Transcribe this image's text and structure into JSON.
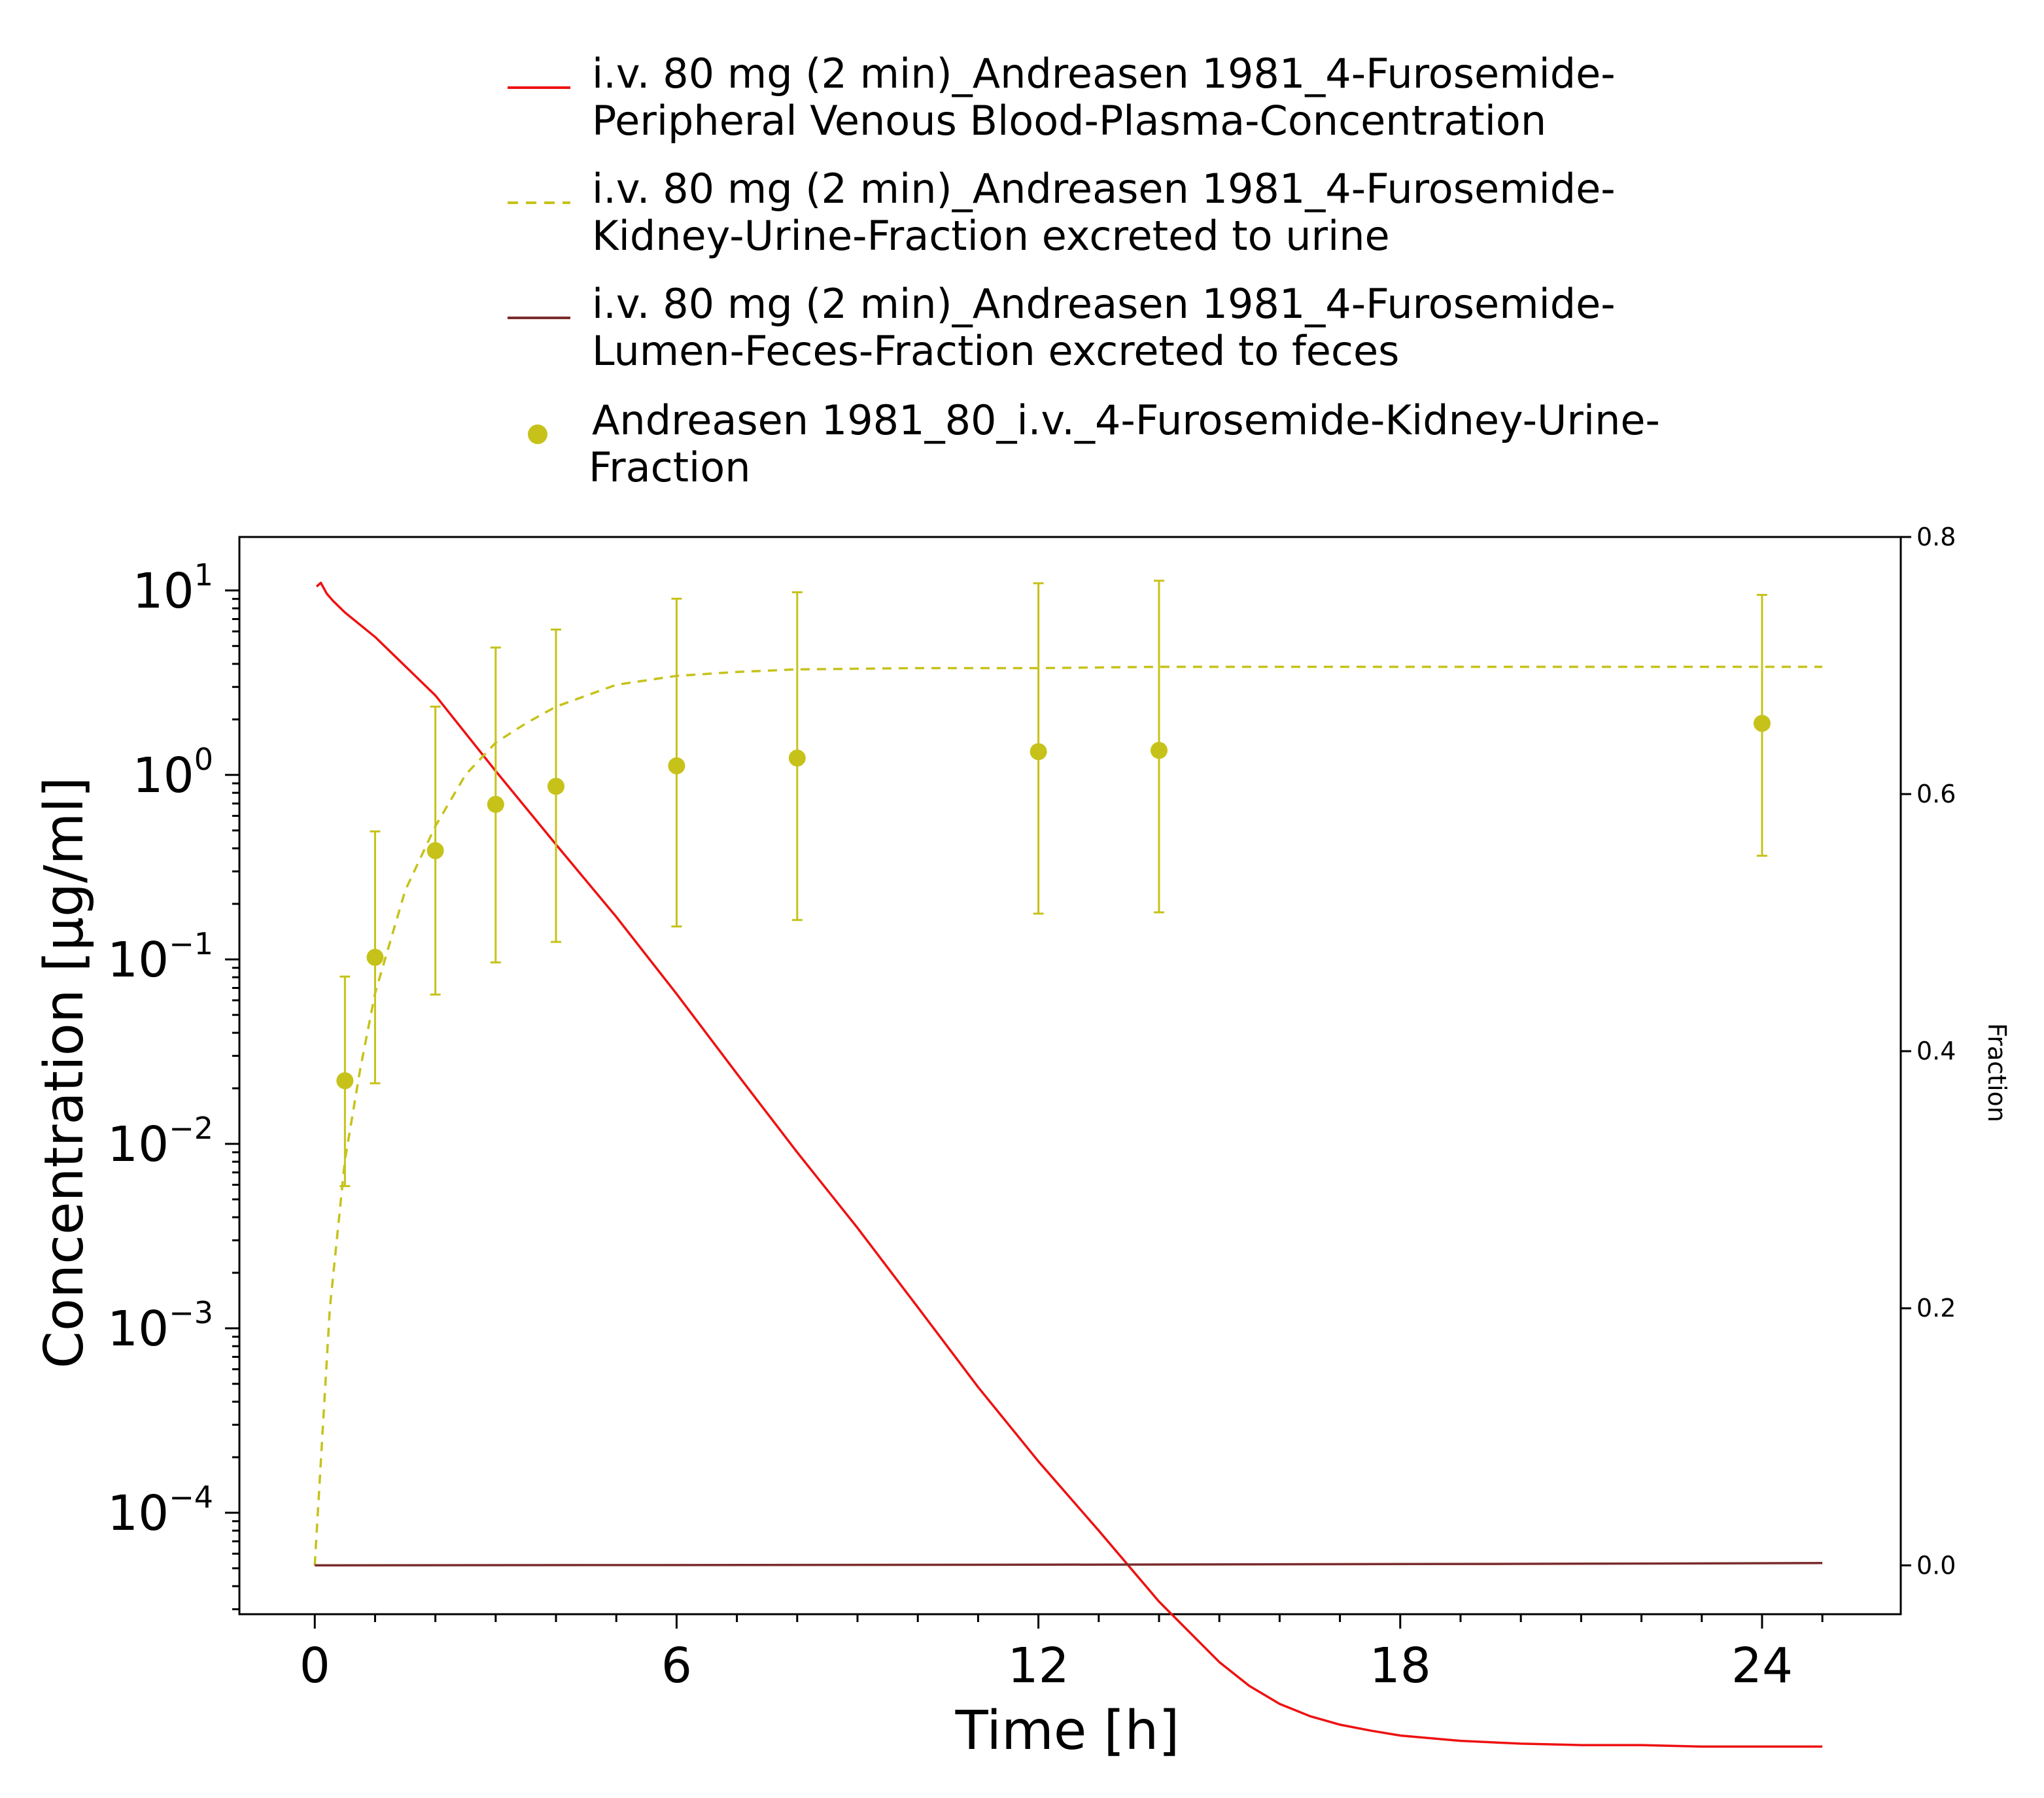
{
  "chart_data": {
    "type": "line",
    "xlabel": "Time [h]",
    "ylabel": "Concentration [µg/ml]",
    "y2label": "Fraction",
    "xlim": [
      -1.25,
      26.3
    ],
    "xticks": [
      "0",
      "6",
      "12",
      "18",
      "24"
    ],
    "xtick_values": [
      0,
      6,
      12,
      18,
      24
    ],
    "y_scale": "log",
    "ylim_log10": [
      -4.55,
      1.29
    ],
    "yticks": [
      {
        "base": "10",
        "exp": "1",
        "value": 10
      },
      {
        "base": "10",
        "exp": "0",
        "value": 1
      },
      {
        "base": "10",
        "exp": "−1",
        "value": 0.1
      },
      {
        "base": "10",
        "exp": "−2",
        "value": 0.01
      },
      {
        "base": "10",
        "exp": "−3",
        "value": 0.001
      },
      {
        "base": "10",
        "exp": "−4",
        "value": 0.0001
      }
    ],
    "y2lim": [
      -0.038,
      0.8
    ],
    "y2ticks": [
      "0.0",
      "0.2",
      "0.4",
      "0.6",
      "0.8"
    ],
    "y2tick_values": [
      0,
      0.2,
      0.4,
      0.6,
      0.8
    ],
    "grid": false,
    "legend_position": "top",
    "series": [
      {
        "name": "i.v. 80 mg (2 min)_Andreasen 1981_4-Furosemide-Peripheral Venous Blood-Plasma-Concentration",
        "legend_lines": [
          "i.v. 80 mg (2 min)_Andreasen 1981_4-Furosemide-",
          "Peripheral Venous Blood-Plasma-Concentration"
        ],
        "color": "#ee1111",
        "style": "solid",
        "axis": "left",
        "x": [
          0.03,
          0.1,
          0.2,
          0.3,
          0.5,
          1,
          2,
          3,
          4,
          5,
          6,
          7,
          8,
          9,
          10,
          11,
          12,
          13,
          14,
          15,
          15.5,
          16,
          16.5,
          17,
          17.5,
          18,
          19,
          20,
          21,
          22,
          23,
          24,
          25
        ],
        "y": [
          10.5,
          11.0,
          9.6,
          8.8,
          7.6,
          5.6,
          2.7,
          1.05,
          0.42,
          0.17,
          0.065,
          0.024,
          0.009,
          0.0035,
          0.0013,
          0.00048,
          0.00019,
          8e-05,
          3.3e-05,
          1.55e-05,
          1.15e-05,
          9.2e-06,
          7.9e-06,
          7.1e-06,
          6.6e-06,
          6.2e-06,
          5.8e-06,
          5.6e-06,
          5.5e-06,
          5.5e-06,
          5.4e-06,
          5.4e-06,
          5.4e-06
        ]
      },
      {
        "name": "i.v. 80 mg (2 min)_Andreasen 1981_4-Furosemide-Kidney-Urine-Fraction excreted to urine",
        "legend_lines": [
          "i.v. 80 mg (2 min)_Andreasen 1981_4-Furosemide-",
          "Kidney-Urine-Fraction excreted to urine"
        ],
        "color": "#c6c21a",
        "style": "dashed",
        "axis": "right",
        "x": [
          0,
          0.25,
          0.5,
          0.75,
          1,
          1.5,
          2,
          2.5,
          3,
          3.5,
          4,
          5,
          6,
          7,
          8,
          10,
          12,
          14,
          16,
          20,
          25
        ],
        "y": [
          0.0,
          0.2,
          0.315,
          0.385,
          0.445,
          0.525,
          0.575,
          0.615,
          0.64,
          0.655,
          0.668,
          0.685,
          0.692,
          0.695,
          0.697,
          0.698,
          0.698,
          0.699,
          0.699,
          0.699,
          0.699
        ]
      },
      {
        "name": "i.v. 80 mg (2 min)_Andreasen 1981_4-Furosemide-Lumen-Feces-Fraction excreted to feces",
        "legend_lines": [
          "i.v. 80 mg (2 min)_Andreasen 1981_4-Furosemide-",
          "Lumen-Feces-Fraction excreted to feces"
        ],
        "color": "#7b2c2c",
        "style": "solid",
        "axis": "right",
        "x": [
          0,
          12,
          20,
          25
        ],
        "y": [
          0.0,
          0.0005,
          0.0012,
          0.0018
        ]
      },
      {
        "name": "Andreasen 1981_80_i.v._4-Furosemide-Kidney-Urine-Fraction",
        "legend_lines": [
          "Andreasen 1981_80_i.v._4-Furosemide-Kidney-Urine-",
          "Fraction"
        ],
        "color": "#c6c21a",
        "style": "markers",
        "axis": "right",
        "x": [
          0.5,
          1,
          2,
          3,
          4,
          6,
          8,
          12,
          14,
          24
        ],
        "y": [
          0.377,
          0.473,
          0.556,
          0.592,
          0.606,
          0.622,
          0.628,
          0.633,
          0.634,
          0.655
        ],
        "y_lower": [
          0.295,
          0.375,
          0.444,
          0.469,
          0.485,
          0.497,
          0.502,
          0.507,
          0.508,
          0.552
        ],
        "y_upper": [
          0.458,
          0.571,
          0.668,
          0.714,
          0.728,
          0.752,
          0.757,
          0.764,
          0.766,
          0.755
        ]
      }
    ]
  }
}
